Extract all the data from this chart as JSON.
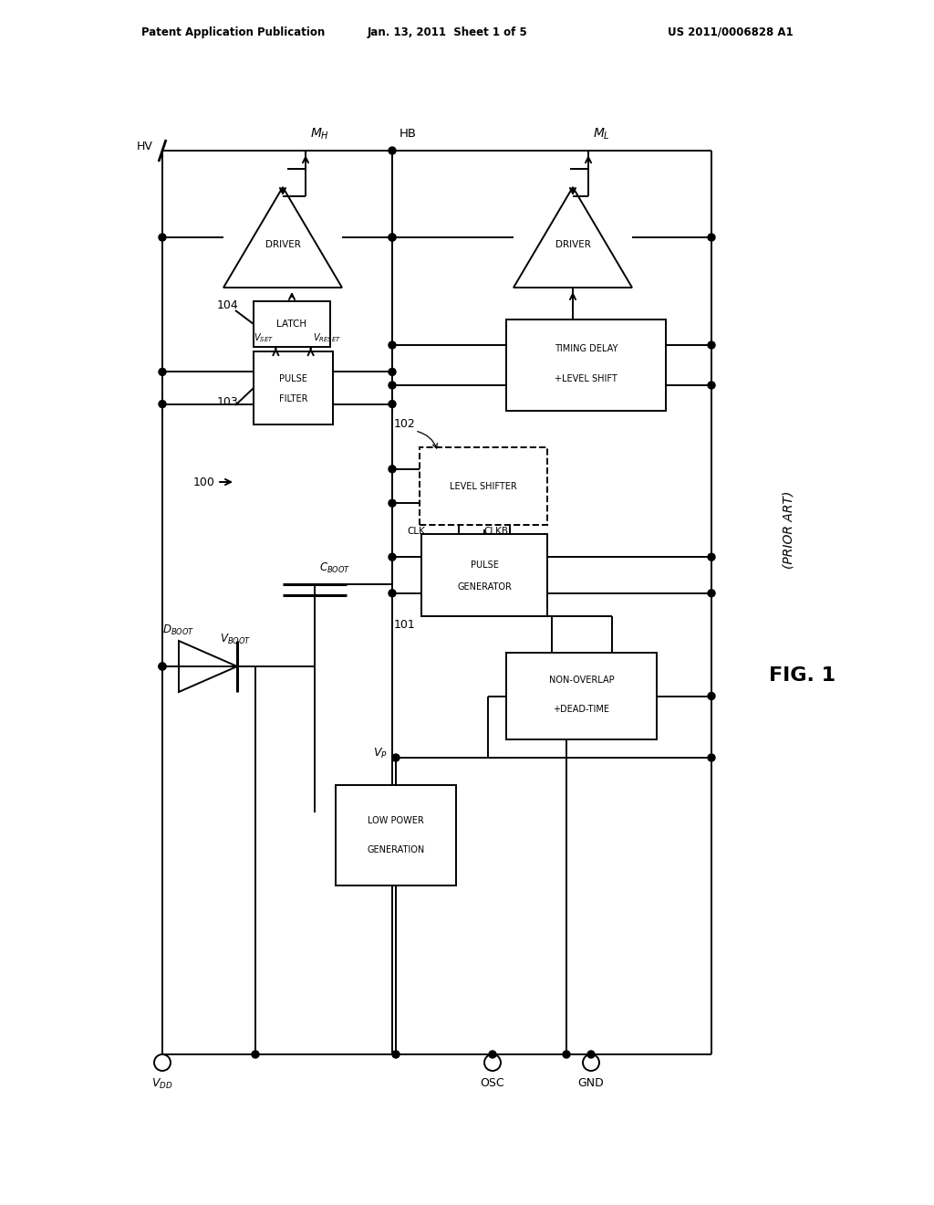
{
  "patent_header_left": "Patent Application Publication",
  "patent_header_mid": "Jan. 13, 2011  Sheet 1 of 5",
  "patent_header_right": "US 2011/0006828 A1",
  "bg_color": "#ffffff",
  "line_color": "#000000",
  "fig_width": 10.24,
  "fig_height": 13.2
}
